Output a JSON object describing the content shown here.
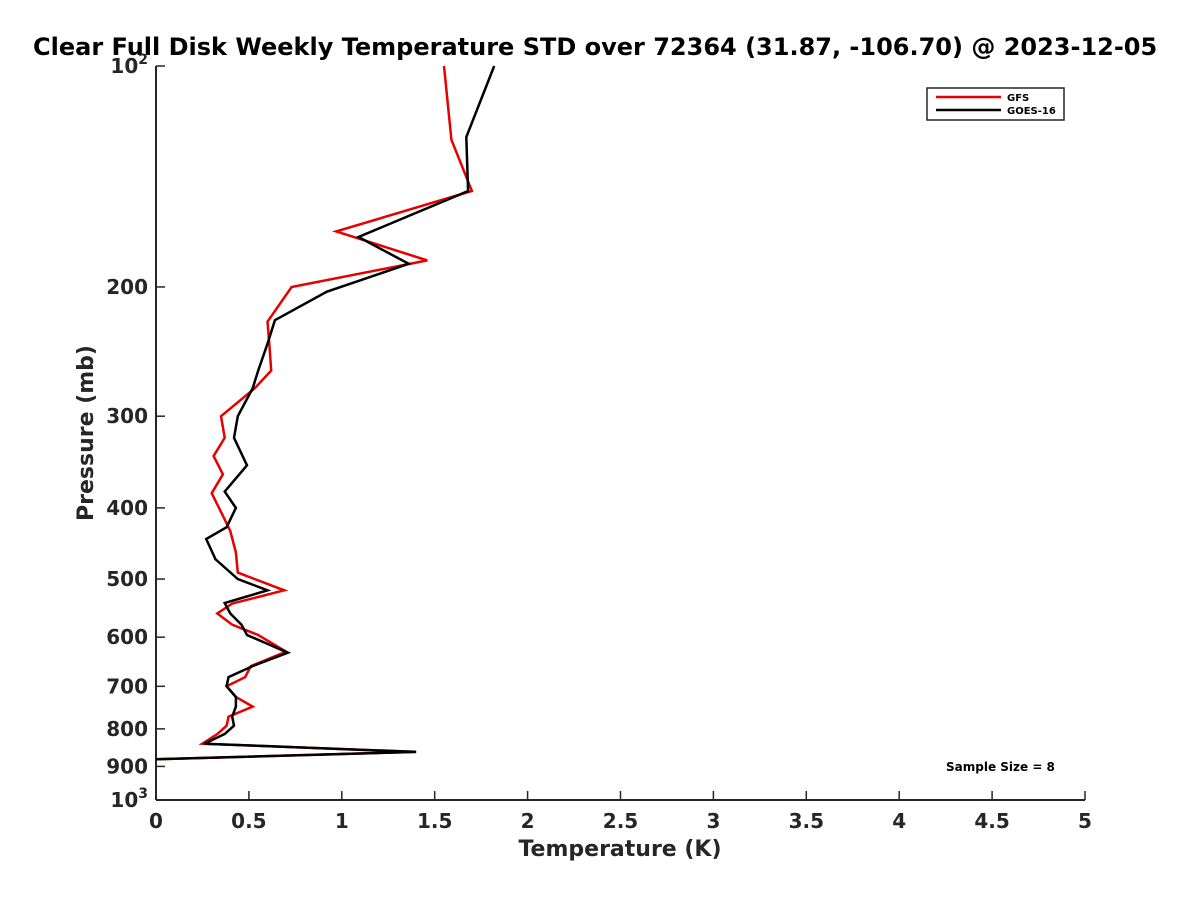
{
  "chart_data": {
    "type": "line",
    "title": "Clear Full Disk Weekly Temperature STD over 72364 (31.87, -106.70) @ 2023-12-05",
    "xlabel": "Temperature (K)",
    "ylabel": "Pressure (mb)",
    "xlim": [
      0,
      5
    ],
    "ylim": [
      100,
      1000
    ],
    "y_scale": "log",
    "y_reversed": true,
    "grid": false,
    "legend_position": "top-right",
    "x_ticks": [
      0,
      0.5,
      1,
      1.5,
      2,
      2.5,
      3,
      3.5,
      4,
      4.5,
      5
    ],
    "x_tick_labels": [
      "0",
      "0.5",
      "1",
      "1.5",
      "2",
      "2.5",
      "3",
      "3.5",
      "4",
      "4.5",
      "5"
    ],
    "y_ticks": [
      100,
      200,
      300,
      400,
      500,
      600,
      700,
      800,
      900,
      1000
    ],
    "y_tick_labels": [
      {
        "base": "10",
        "exp": "2"
      },
      {
        "base": "200"
      },
      {
        "base": "300"
      },
      {
        "base": "400"
      },
      {
        "base": "500"
      },
      {
        "base": "600"
      },
      {
        "base": "700"
      },
      {
        "base": "800"
      },
      {
        "base": "900"
      },
      {
        "base": "10",
        "exp": "3"
      }
    ],
    "annotation": "Sample Size = 8",
    "series": [
      {
        "name": "GFS",
        "color": "#e60000",
        "points": [
          [
            1.55,
            100
          ],
          [
            1.59,
            126
          ],
          [
            1.7,
            148
          ],
          [
            0.97,
            168
          ],
          [
            1.46,
            184
          ],
          [
            0.73,
            200
          ],
          [
            0.6,
            223
          ],
          [
            0.61,
            239
          ],
          [
            0.62,
            260
          ],
          [
            0.53,
            275
          ],
          [
            0.35,
            300
          ],
          [
            0.37,
            321
          ],
          [
            0.31,
            340
          ],
          [
            0.36,
            360
          ],
          [
            0.3,
            382
          ],
          [
            0.35,
            405
          ],
          [
            0.4,
            430
          ],
          [
            0.43,
            460
          ],
          [
            0.44,
            490
          ],
          [
            0.69,
            518
          ],
          [
            0.41,
            540
          ],
          [
            0.33,
            557
          ],
          [
            0.41,
            577
          ],
          [
            0.55,
            596
          ],
          [
            0.7,
            628
          ],
          [
            0.51,
            657
          ],
          [
            0.48,
            680
          ],
          [
            0.38,
            700
          ],
          [
            0.43,
            724
          ],
          [
            0.52,
            746
          ],
          [
            0.39,
            770
          ],
          [
            0.38,
            792
          ],
          [
            0.33,
            813
          ],
          [
            0.25,
            838
          ],
          [
            1.4,
            860
          ],
          [
            0.0,
            880
          ]
        ]
      },
      {
        "name": "GOES-16",
        "color": "#000000",
        "points": [
          [
            1.82,
            100
          ],
          [
            1.67,
            125
          ],
          [
            1.68,
            148
          ],
          [
            1.09,
            171
          ],
          [
            1.36,
            186
          ],
          [
            0.92,
            203
          ],
          [
            0.64,
            222
          ],
          [
            0.6,
            239
          ],
          [
            0.55,
            260
          ],
          [
            0.52,
            275
          ],
          [
            0.44,
            300
          ],
          [
            0.42,
            321
          ],
          [
            0.49,
            350
          ],
          [
            0.37,
            380
          ],
          [
            0.43,
            400
          ],
          [
            0.38,
            425
          ],
          [
            0.27,
            441
          ],
          [
            0.32,
            470
          ],
          [
            0.44,
            500
          ],
          [
            0.6,
            518
          ],
          [
            0.37,
            539
          ],
          [
            0.4,
            557
          ],
          [
            0.46,
            577
          ],
          [
            0.49,
            596
          ],
          [
            0.71,
            630
          ],
          [
            0.52,
            657
          ],
          [
            0.39,
            680
          ],
          [
            0.38,
            700
          ],
          [
            0.43,
            724
          ],
          [
            0.43,
            746
          ],
          [
            0.41,
            770
          ],
          [
            0.42,
            792
          ],
          [
            0.37,
            813
          ],
          [
            0.26,
            838
          ],
          [
            1.4,
            860
          ],
          [
            0.0,
            880
          ]
        ]
      }
    ]
  }
}
